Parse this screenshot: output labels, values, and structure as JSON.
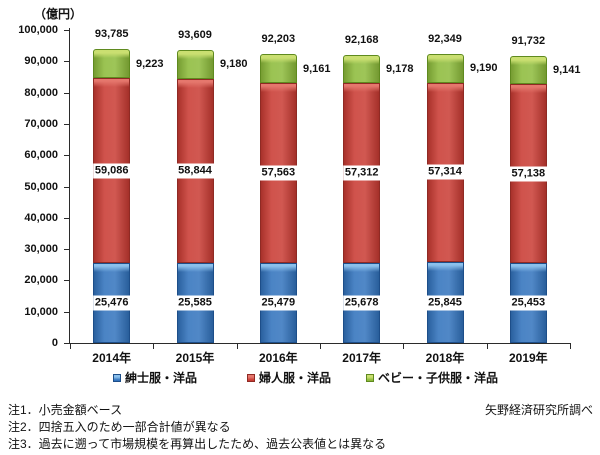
{
  "chart_data": {
    "type": "bar",
    "stacked": true,
    "unit_label": "（億円）",
    "categories": [
      "2014年",
      "2015年",
      "2016年",
      "2017年",
      "2018年",
      "2019年"
    ],
    "series": [
      {
        "name": "紳士服・洋品",
        "key": "mens",
        "color": "#3273BD",
        "highlight": "#8BC0EC",
        "border": "#1D4E89",
        "values": [
          25476,
          25585,
          25479,
          25678,
          25845,
          25453
        ]
      },
      {
        "name": "婦人服・洋品",
        "key": "womens",
        "color": "#C93B33",
        "highlight": "#E5776D",
        "border": "#8F2A24",
        "values": [
          59086,
          58844,
          57563,
          57312,
          57314,
          57138
        ]
      },
      {
        "name": "ベビー・子供服・洋品",
        "key": "baby-kids",
        "color": "#8DBB3B",
        "highlight": "#CADF71",
        "border": "#5F8A1F",
        "values": [
          9223,
          9180,
          9161,
          9178,
          9190,
          9141
        ]
      }
    ],
    "totals": [
      93785,
      93609,
      92203,
      92168,
      92349,
      91732
    ],
    "ylim": [
      0,
      100000
    ],
    "ytick_labels": [
      "0",
      "10,000",
      "20,000",
      "30,000",
      "40,000",
      "50,000",
      "60,000",
      "70,000",
      "80,000",
      "90,000",
      "100,000"
    ],
    "grid": false,
    "legend_position": "bottom"
  },
  "notes": [
    "注1．小売金額ベース",
    "注2．四捨五入のため一部合計値が異なる",
    "注3．過去に遡って市場規模を再算出したため、過去公表値とは異なる"
  ],
  "source": "矢野経済研究所調べ"
}
